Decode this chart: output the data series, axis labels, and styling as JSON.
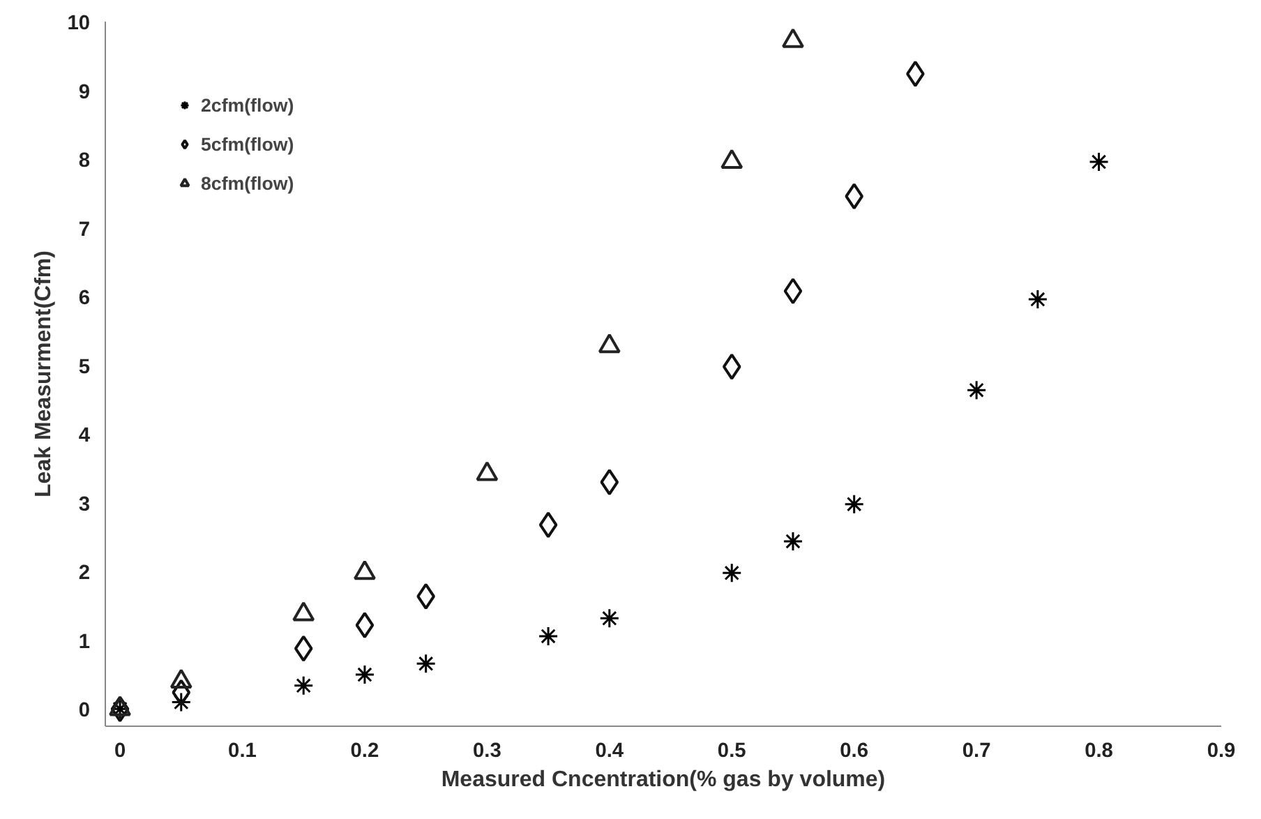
{
  "chart_data": {
    "type": "scatter",
    "xlabel": "Measured Cncentration(% gas by volume)",
    "ylabel": "Leak Measurment(Cfm)",
    "xlim": [
      -0.012,
      0.9
    ],
    "ylim": [
      -0.25,
      10
    ],
    "xticks": [
      0,
      0.1,
      0.2,
      0.3,
      0.4,
      0.5,
      0.6,
      0.7,
      0.8,
      0.9
    ],
    "yticks": [
      0,
      1,
      2,
      3,
      4,
      5,
      6,
      7,
      8,
      9,
      10
    ],
    "grid": false,
    "legend": "top left",
    "series": [
      {
        "name": "2cfm(flow)",
        "color": "#000000",
        "marker": "cross",
        "x": [
          0,
          0.05,
          0.15,
          0.2,
          0.25,
          0.35,
          0.4,
          0.5,
          0.55,
          0.6,
          0.7,
          0.75,
          0.8
        ],
        "values": [
          0,
          0.1,
          0.34,
          0.5,
          0.66,
          1.06,
          1.32,
          1.98,
          2.44,
          2.98,
          4.64,
          5.96,
          7.96
        ]
      },
      {
        "name": "5cfm(flow)",
        "color": "#111111",
        "marker": "diamond",
        "x": [
          0,
          0.05,
          0.15,
          0.2,
          0.25,
          0.35,
          0.4,
          0.5,
          0.55,
          0.6,
          0.65
        ],
        "values": [
          0,
          0.24,
          0.88,
          1.22,
          1.64,
          2.68,
          3.3,
          4.98,
          6.08,
          7.46,
          9.24
        ]
      },
      {
        "name": "8cfm(flow)",
        "color": "#222222",
        "marker": "triangle",
        "x": [
          0,
          0.05,
          0.15,
          0.2,
          0.3,
          0.4,
          0.5,
          0.55
        ],
        "values": [
          0,
          0.4,
          1.38,
          1.98,
          3.42,
          5.28,
          7.96,
          9.72
        ]
      }
    ]
  }
}
